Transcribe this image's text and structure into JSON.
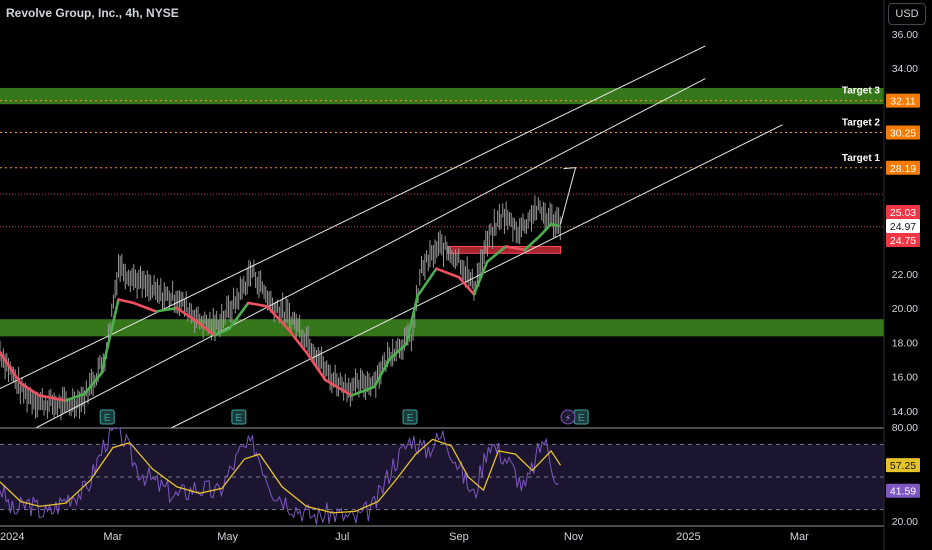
{
  "header": {
    "title": "Revolve Group, Inc., 4h, NYSE"
  },
  "currency_button": "USD",
  "colors": {
    "zone_green": "#3a7d1e",
    "zone_red": "#e0303e",
    "baseline_green": "#4caf50",
    "baseline_red": "#f05060",
    "candle": "#9a9a9a",
    "channel": "#e6e6e6",
    "target_line": "#f7931a",
    "rsi": "#7e57c2",
    "rsi_ma": "#e6c229",
    "price_tag_red": "#f23645",
    "price_tag_orange": "#f57c00"
  },
  "chart_data": [
    {
      "type": "line",
      "title": "Revolve Group, Inc., 4h, NYSE",
      "ylim": [
        13.0,
        37.4
      ],
      "y_ticks": [
        "36.00",
        "34.00",
        "22.00",
        "20.00",
        "18.00",
        "16.00",
        "14.00"
      ],
      "x_tick_labels": [
        "2024",
        "Mar",
        "May",
        "Jul",
        "Sep",
        "Nov",
        "2025",
        "Mar"
      ],
      "x_range": [
        "2024-01-01",
        "2025-04-15"
      ],
      "series": [
        {
          "role": "price-path",
          "points": [
            [
              "2024-01-01",
              17.5
            ],
            [
              "2024-01-12",
              15.2
            ],
            [
              "2024-01-22",
              14.5
            ],
            [
              "2024-02-05",
              14.3
            ],
            [
              "2024-02-15",
              14.8
            ],
            [
              "2024-02-26",
              17.2
            ],
            [
              "2024-03-04",
              22.5
            ],
            [
              "2024-03-14",
              21.6
            ],
            [
              "2024-03-25",
              20.8
            ],
            [
              "2024-04-04",
              20.6
            ],
            [
              "2024-04-16",
              19.3
            ],
            [
              "2024-04-24",
              18.9
            ],
            [
              "2024-05-05",
              20.3
            ],
            [
              "2024-05-14",
              22.2
            ],
            [
              "2024-05-24",
              20.3
            ],
            [
              "2024-06-04",
              19.4
            ],
            [
              "2024-06-14",
              18.0
            ],
            [
              "2024-06-24",
              16.0
            ],
            [
              "2024-07-06",
              15.3
            ],
            [
              "2024-07-18",
              15.8
            ],
            [
              "2024-07-28",
              17.6
            ],
            [
              "2024-08-07",
              18.3
            ],
            [
              "2024-08-12",
              22.3
            ],
            [
              "2024-08-22",
              23.6
            ],
            [
              "2024-09-01",
              22.9
            ],
            [
              "2024-09-09",
              21.2
            ],
            [
              "2024-09-16",
              23.8
            ],
            [
              "2024-09-24",
              25.5
            ],
            [
              "2024-10-03",
              24.5
            ],
            [
              "2024-10-12",
              25.8
            ],
            [
              "2024-10-20",
              25.2
            ],
            [
              "2024-10-25",
              24.9
            ]
          ]
        },
        {
          "name": "",
          "role": "trend-baseline",
          "points": [
            [
              "2024-01-01",
              17.4
            ],
            [
              "2024-01-12",
              15.6
            ],
            [
              "2024-01-22",
              14.9
            ],
            [
              "2024-02-05",
              14.6
            ],
            [
              "2024-02-15",
              15.0
            ],
            [
              "2024-02-24",
              16.2
            ],
            [
              "2024-03-04",
              20.5
            ],
            [
              "2024-03-12",
              20.3
            ],
            [
              "2024-03-24",
              19.8
            ],
            [
              "2024-04-04",
              20.0
            ],
            [
              "2024-04-15",
              19.2
            ],
            [
              "2024-04-24",
              18.4
            ],
            [
              "2024-05-02",
              18.8
            ],
            [
              "2024-05-12",
              20.3
            ],
            [
              "2024-05-22",
              20.1
            ],
            [
              "2024-06-02",
              18.8
            ],
            [
              "2024-06-12",
              17.4
            ],
            [
              "2024-06-22",
              15.8
            ],
            [
              "2024-07-06",
              14.9
            ],
            [
              "2024-07-18",
              15.4
            ],
            [
              "2024-07-26",
              17.0
            ],
            [
              "2024-08-04",
              17.9
            ],
            [
              "2024-08-10",
              20.7
            ],
            [
              "2024-08-20",
              22.3
            ],
            [
              "2024-09-01",
              21.8
            ],
            [
              "2024-09-09",
              20.8
            ],
            [
              "2024-09-16",
              22.7
            ],
            [
              "2024-09-26",
              23.6
            ],
            [
              "2024-10-06",
              23.4
            ],
            [
              "2024-10-14",
              24.2
            ],
            [
              "2024-10-20",
              24.9
            ],
            [
              "2024-10-24",
              24.8
            ]
          ]
        }
      ],
      "zones": [
        {
          "role": "resistance",
          "y": [
            31.9,
            32.85
          ],
          "color": "#3a7d1e"
        },
        {
          "role": "support",
          "y": [
            18.35,
            19.35
          ],
          "color": "#3a7d1e"
        },
        {
          "role": "demand",
          "x": [
            "2024-08-26",
            "2024-10-25"
          ],
          "y": [
            23.2,
            23.6
          ],
          "color": "#e0303e"
        }
      ],
      "channel_lines": [
        [
          [
            "2024-01-01",
            15.3
          ],
          [
            "2025-01-10",
            35.3
          ]
        ],
        [
          [
            "2024-01-20",
            13.0
          ],
          [
            "2025-01-10",
            33.4
          ]
        ],
        [
          [
            "2024-04-01",
            13.0
          ],
          [
            "2025-02-20",
            30.7
          ]
        ]
      ],
      "projection_arrow": [
        [
          "2024-10-25",
          24.9
        ],
        [
          "2024-11-02",
          28.2
        ]
      ],
      "targets": [
        {
          "label": "Target 3",
          "value": "32.11"
        },
        {
          "label": "Target 2",
          "value": "30.25"
        },
        {
          "label": "Target 1",
          "value": "28.19"
        }
      ],
      "reference_lines": [
        24.75,
        26.65
      ],
      "price_tags": [
        {
          "value": "25.03",
          "kind": "red"
        },
        {
          "value": "24.97",
          "kind": "white"
        },
        {
          "value": "24.75",
          "kind": "red"
        }
      ],
      "earnings_markers": [
        "2024-02-27",
        "2024-05-07",
        "2024-08-06",
        "2024-11-05"
      ],
      "event_markers": [
        {
          "date": "2024-10-29",
          "kind": "dividend"
        }
      ]
    },
    {
      "type": "line",
      "title": "",
      "ylim": [
        20.0,
        80.0
      ],
      "y_ticks": [
        "80.00",
        "20.00"
      ],
      "guide_lines": [
        70,
        50,
        30
      ],
      "series": [
        {
          "name": "",
          "role": "rsi",
          "points": [
            [
              "2024-01-01",
              44
            ],
            [
              "2024-01-08",
              28
            ],
            [
              "2024-01-16",
              34
            ],
            [
              "2024-01-26",
              27
            ],
            [
              "2024-02-06",
              38
            ],
            [
              "2024-02-16",
              42
            ],
            [
              "2024-02-26",
              72
            ],
            [
              "2024-03-04",
              80
            ],
            [
              "2024-03-14",
              55
            ],
            [
              "2024-03-24",
              46
            ],
            [
              "2024-04-04",
              38
            ],
            [
              "2024-04-14",
              44
            ],
            [
              "2024-04-26",
              40
            ],
            [
              "2024-05-08",
              66
            ],
            [
              "2024-05-15",
              70
            ],
            [
              "2024-05-25",
              42
            ],
            [
              "2024-06-05",
              32
            ],
            [
              "2024-06-16",
              26
            ],
            [
              "2024-06-26",
              28
            ],
            [
              "2024-07-08",
              24
            ],
            [
              "2024-07-18",
              32
            ],
            [
              "2024-07-28",
              58
            ],
            [
              "2024-08-07",
              74
            ],
            [
              "2024-08-14",
              66
            ],
            [
              "2024-08-24",
              76
            ],
            [
              "2024-09-02",
              54
            ],
            [
              "2024-09-09",
              38
            ],
            [
              "2024-09-17",
              72
            ],
            [
              "2024-09-27",
              60
            ],
            [
              "2024-10-06",
              42
            ],
            [
              "2024-10-16",
              74
            ],
            [
              "2024-10-25",
              41.59
            ]
          ]
        },
        {
          "name": "",
          "role": "rsi-ma",
          "points": [
            [
              "2024-01-01",
              47
            ],
            [
              "2024-01-12",
              35
            ],
            [
              "2024-01-22",
              32
            ],
            [
              "2024-02-05",
              34
            ],
            [
              "2024-02-18",
              48
            ],
            [
              "2024-03-01",
              68
            ],
            [
              "2024-03-10",
              71
            ],
            [
              "2024-03-22",
              55
            ],
            [
              "2024-04-04",
              44
            ],
            [
              "2024-04-16",
              40
            ],
            [
              "2024-04-28",
              43
            ],
            [
              "2024-05-10",
              61
            ],
            [
              "2024-05-18",
              64
            ],
            [
              "2024-05-30",
              44
            ],
            [
              "2024-06-12",
              32
            ],
            [
              "2024-06-26",
              28
            ],
            [
              "2024-07-08",
              29
            ],
            [
              "2024-07-20",
              35
            ],
            [
              "2024-07-30",
              49
            ],
            [
              "2024-08-09",
              64
            ],
            [
              "2024-08-18",
              73
            ],
            [
              "2024-08-28",
              69
            ],
            [
              "2024-09-06",
              50
            ],
            [
              "2024-09-14",
              42
            ],
            [
              "2024-09-22",
              66
            ],
            [
              "2024-10-01",
              64
            ],
            [
              "2024-10-10",
              54
            ],
            [
              "2024-10-20",
              66
            ],
            [
              "2024-10-25",
              57.25
            ]
          ]
        }
      ],
      "value_tags": [
        {
          "value": "57.25",
          "kind": "yellow"
        },
        {
          "value": "41.59",
          "kind": "purple"
        }
      ]
    }
  ]
}
